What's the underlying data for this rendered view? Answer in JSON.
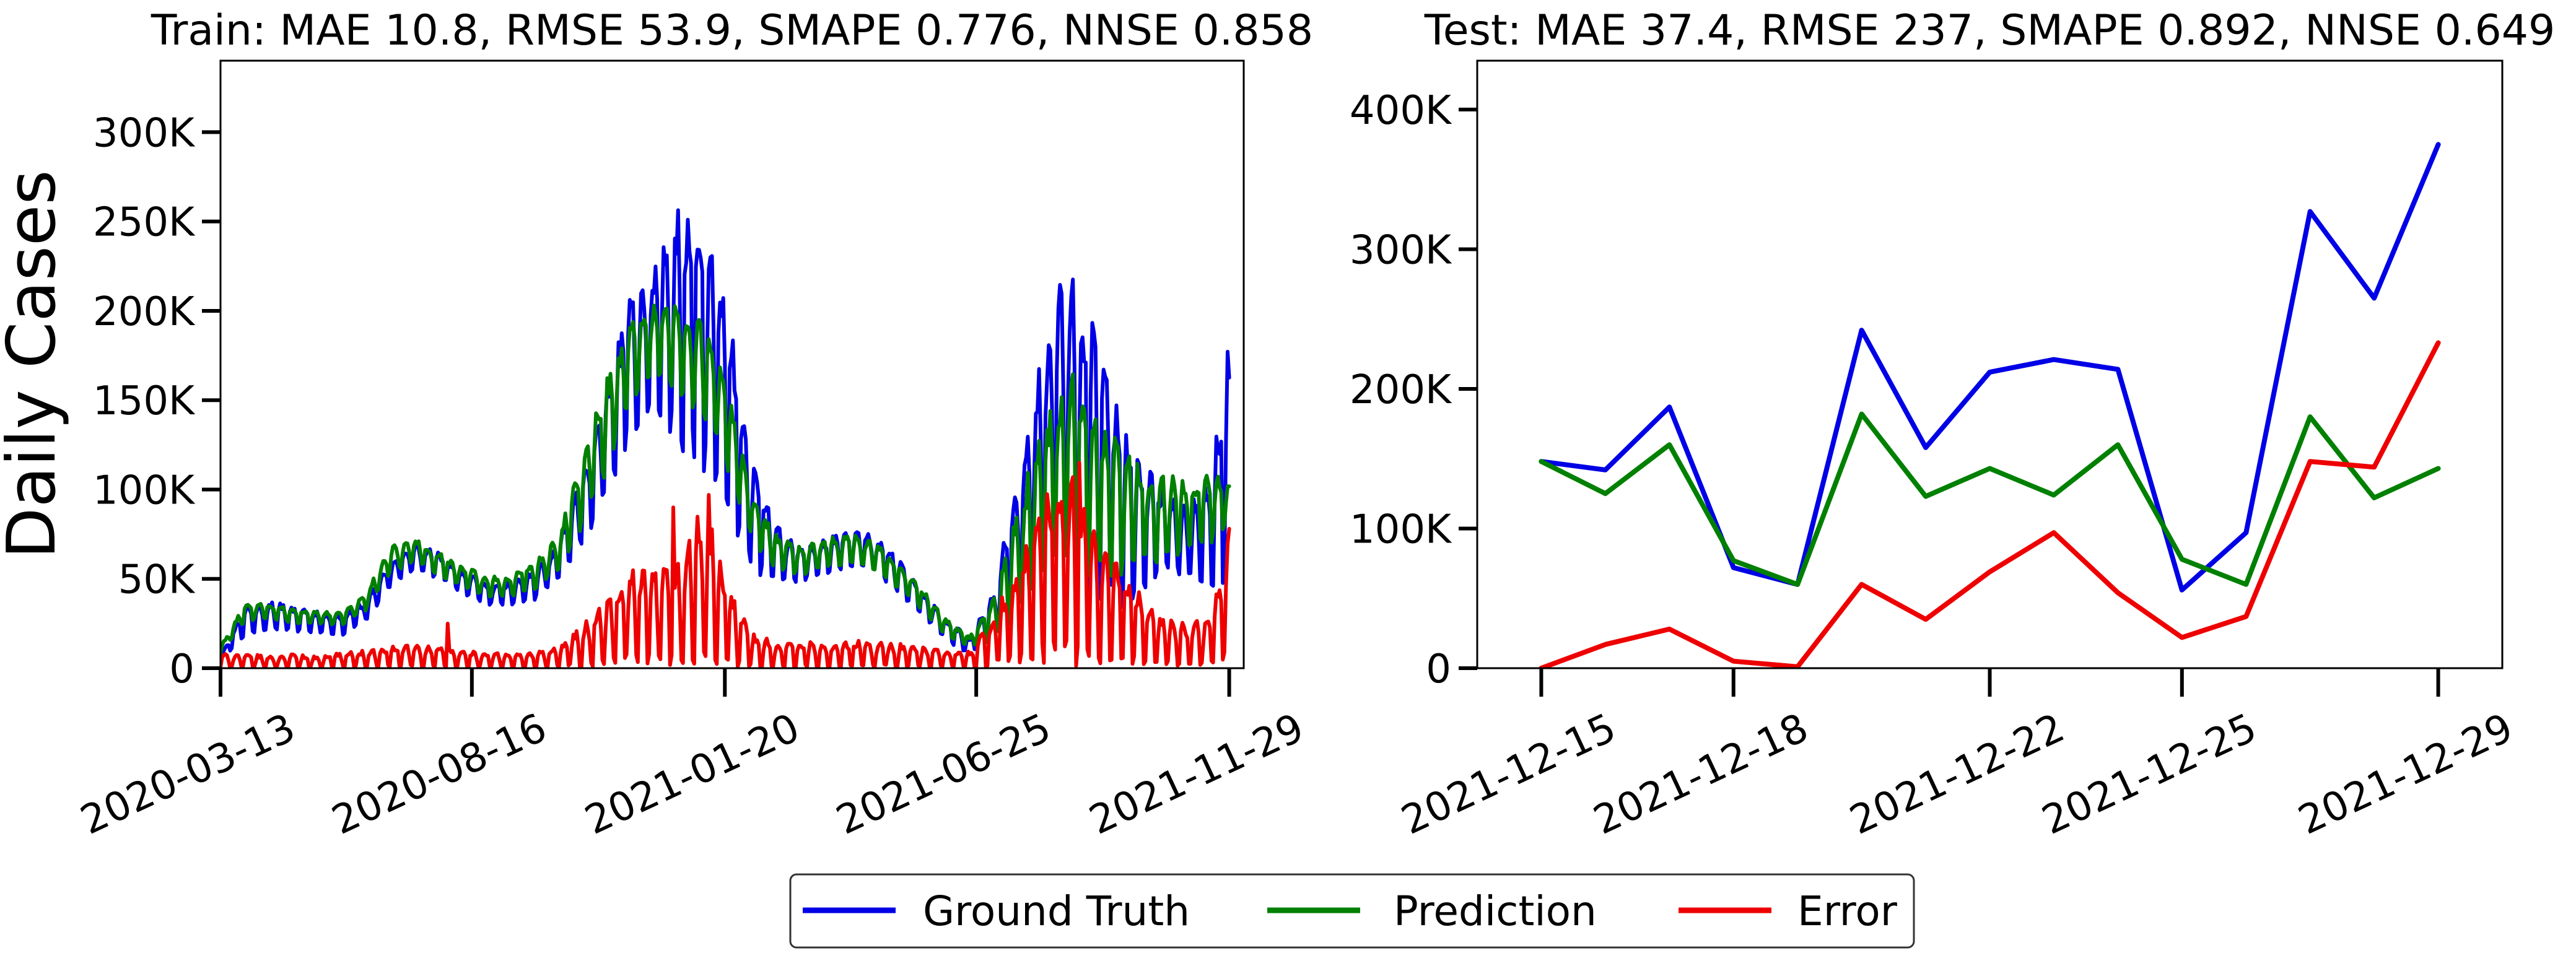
{
  "colors": {
    "ground_truth": "#0000e6",
    "prediction": "#008000",
    "error": "#ee0000",
    "axis": "#000000"
  },
  "legend": {
    "position": "bottom-center",
    "entries": [
      {
        "key": "ground_truth",
        "label": "Ground Truth"
      },
      {
        "key": "prediction",
        "label": "Prediction"
      },
      {
        "key": "error",
        "label": "Error"
      }
    ]
  },
  "chart_data": [
    {
      "type": "line",
      "title": "Train: MAE 10.8, RMSE 53.9, SMAPE 0.776, NNSE 0.858",
      "ylabel": "Daily Cases",
      "xlabel": "",
      "x_range": [
        "2020-03-13",
        "2021-12-08"
      ],
      "ylim": [
        0,
        340000
      ],
      "yticks": [
        0,
        50000,
        100000,
        150000,
        200000,
        250000,
        300000
      ],
      "ytick_labels": [
        "0",
        "50K",
        "100K",
        "150K",
        "200K",
        "250K",
        "300K"
      ],
      "xticks": [
        "2020-03-13",
        "2020-08-16",
        "2021-01-20",
        "2021-06-25",
        "2021-11-29"
      ],
      "grid": false,
      "series": [
        {
          "key": "ground_truth",
          "name": "Ground Truth",
          "envelope": {
            "dates": [
              "2020-03-13",
              "2020-03-28",
              "2020-04-12",
              "2020-04-27",
              "2020-05-12",
              "2020-05-27",
              "2020-06-11",
              "2020-06-26",
              "2020-07-11",
              "2020-07-26",
              "2020-08-10",
              "2020-08-25",
              "2020-09-09",
              "2020-09-24",
              "2020-10-09",
              "2020-10-24",
              "2020-11-08",
              "2020-11-23",
              "2020-12-08",
              "2020-12-23",
              "2021-01-07",
              "2021-01-22",
              "2021-02-06",
              "2021-02-21",
              "2021-03-08",
              "2021-03-23",
              "2021-04-07",
              "2021-04-22",
              "2021-05-07",
              "2021-05-22",
              "2021-06-06",
              "2021-06-21",
              "2021-07-06",
              "2021-07-21",
              "2021-08-05",
              "2021-08-20",
              "2021-09-04",
              "2021-09-19",
              "2021-10-04",
              "2021-10-19",
              "2021-11-03",
              "2021-11-18",
              "2021-11-29"
            ],
            "low": [
              4000,
              18000,
              22000,
              20000,
              20000,
              18000,
              26000,
              45000,
              55000,
              50000,
              42000,
              35000,
              35000,
              38000,
              50000,
              70000,
              95000,
              130000,
              140000,
              120000,
              110000,
              85000,
              55000,
              45000,
              48000,
              52000,
              55000,
              55000,
              42000,
              30000,
              15000,
              8000,
              15000,
              40000,
              60000,
              55000,
              40000,
              30000,
              40000,
              55000,
              50000,
              45000,
              48000
            ],
            "high": [
              7000,
              35000,
              38000,
              35000,
              32000,
              30000,
              38000,
              58000,
              70000,
              65000,
              55000,
              48000,
              48000,
              55000,
              70000,
              110000,
              160000,
              210000,
              230000,
              260000,
              250000,
              200000,
              120000,
              80000,
              68000,
              72000,
              78000,
              75000,
              62000,
              45000,
              28000,
              18000,
              45000,
              110000,
              180000,
              230000,
              200000,
              160000,
              120000,
              100000,
              90000,
              110000,
              185000
            ]
          }
        },
        {
          "key": "prediction",
          "name": "Prediction",
          "envelope": {
            "dates": [
              "2020-03-13",
              "2020-03-28",
              "2020-04-12",
              "2020-04-27",
              "2020-05-12",
              "2020-05-27",
              "2020-06-11",
              "2020-06-26",
              "2020-07-11",
              "2020-07-26",
              "2020-08-10",
              "2020-08-25",
              "2020-09-09",
              "2020-09-24",
              "2020-10-09",
              "2020-10-24",
              "2020-11-08",
              "2020-11-23",
              "2020-12-08",
              "2020-12-23",
              "2021-01-07",
              "2021-01-22",
              "2021-02-06",
              "2021-02-21",
              "2021-03-08",
              "2021-03-23",
              "2021-04-07",
              "2021-04-22",
              "2021-05-07",
              "2021-05-22",
              "2021-06-06",
              "2021-06-21",
              "2021-07-06",
              "2021-07-21",
              "2021-08-05",
              "2021-08-20",
              "2021-09-04",
              "2021-09-19",
              "2021-10-04",
              "2021-10-19",
              "2021-11-03",
              "2021-11-18",
              "2021-11-29"
            ],
            "low": [
              8000,
              26000,
              28000,
              25000,
              25000,
              24000,
              32000,
              52000,
              60000,
              52000,
              45000,
              40000,
              40000,
              44000,
              55000,
              80000,
              110000,
              150000,
              165000,
              150000,
              140000,
              110000,
              70000,
              55000,
              52000,
              55000,
              58000,
              55000,
              45000,
              33000,
              18000,
              12000,
              15000,
              30000,
              50000,
              60000,
              50000,
              50000,
              55000,
              60000,
              65000,
              70000,
              80000
            ],
            "high": [
              12000,
              36000,
              36000,
              33000,
              32000,
              31000,
              42000,
              68000,
              73000,
              65000,
              58000,
              52000,
              52000,
              60000,
              75000,
              120000,
              165000,
              195000,
              205000,
              205000,
              195000,
              160000,
              95000,
              75000,
              68000,
              72000,
              76000,
              72000,
              60000,
              45000,
              28000,
              18000,
              40000,
              90000,
              140000,
              170000,
              155000,
              130000,
              115000,
              110000,
              105000,
              110000,
              105000
            ]
          }
        },
        {
          "key": "error",
          "name": "Error",
          "envelope": {
            "dates": [
              "2020-03-13",
              "2020-03-28",
              "2020-04-12",
              "2020-04-27",
              "2020-05-12",
              "2020-05-27",
              "2020-06-11",
              "2020-06-26",
              "2020-07-11",
              "2020-07-26",
              "2020-08-10",
              "2020-08-25",
              "2020-09-09",
              "2020-09-24",
              "2020-10-09",
              "2020-10-24",
              "2020-11-08",
              "2020-11-23",
              "2020-12-08",
              "2020-12-23",
              "2021-01-07",
              "2021-01-22",
              "2021-02-06",
              "2021-02-21",
              "2021-03-08",
              "2021-03-23",
              "2021-04-07",
              "2021-04-22",
              "2021-05-07",
              "2021-05-22",
              "2021-06-06",
              "2021-06-21",
              "2021-07-06",
              "2021-07-21",
              "2021-08-05",
              "2021-08-20",
              "2021-09-04",
              "2021-09-19",
              "2021-10-04",
              "2021-10-19",
              "2021-11-03",
              "2021-11-18",
              "2021-11-29"
            ],
            "low": [
              0,
              0,
              0,
              0,
              0,
              0,
              0,
              0,
              0,
              0,
              0,
              0,
              0,
              0,
              0,
              0,
              0,
              0,
              0,
              0,
              0,
              0,
              0,
              0,
              0,
              0,
              0,
              0,
              0,
              0,
              0,
              0,
              0,
              0,
              0,
              0,
              0,
              0,
              0,
              0,
              0,
              0,
              0
            ],
            "high": [
              8000,
              8000,
              7000,
              8000,
              7000,
              9000,
              10000,
              12000,
              14000,
              12000,
              10000,
              9000,
              8000,
              9000,
              12000,
              25000,
              40000,
              55000,
              55000,
              60000,
              95000,
              45000,
              20000,
              15000,
              15000,
              14000,
              15000,
              16000,
              14000,
              12000,
              10000,
              10000,
              30000,
              60000,
              100000,
              115000,
              85000,
              60000,
              45000,
              30000,
              25000,
              30000,
              75000
            ]
          },
          "spikes": [
            {
              "date": "2020-08-01",
              "value": 25000
            },
            {
              "date": "2020-12-19",
              "value": 90000
            },
            {
              "date": "2021-01-10",
              "value": 97000
            },
            {
              "date": "2021-08-28",
              "value": 115000
            },
            {
              "date": "2021-11-29",
              "value": 78000
            }
          ]
        }
      ]
    },
    {
      "type": "line",
      "title": "Test: MAE 37.4, RMSE 237, SMAPE 0.892, NNSE 0.649",
      "ylabel": "",
      "xlabel": "",
      "x": [
        "2021-12-15",
        "2021-12-16",
        "2021-12-17",
        "2021-12-18",
        "2021-12-19",
        "2021-12-20",
        "2021-12-21",
        "2021-12-22",
        "2021-12-23",
        "2021-12-24",
        "2021-12-25",
        "2021-12-26",
        "2021-12-27",
        "2021-12-28",
        "2021-12-29"
      ],
      "x_range": [
        "2021-12-14",
        "2021-12-30"
      ],
      "ylim": [
        0,
        435000
      ],
      "yticks": [
        0,
        100000,
        200000,
        300000,
        400000
      ],
      "ytick_labels": [
        "0",
        "100K",
        "200K",
        "300K",
        "400K"
      ],
      "xticks": [
        "2021-12-15",
        "2021-12-18",
        "2021-12-22",
        "2021-12-25",
        "2021-12-29"
      ],
      "grid": false,
      "series": [
        {
          "key": "ground_truth",
          "name": "Ground Truth",
          "values": [
            148000,
            142000,
            187000,
            72000,
            60000,
            242000,
            158000,
            212000,
            221000,
            214000,
            56000,
            97000,
            327000,
            265000,
            375000
          ]
        },
        {
          "key": "prediction",
          "name": "Prediction",
          "values": [
            148000,
            125000,
            160000,
            77000,
            60000,
            182000,
            123000,
            143000,
            124000,
            160000,
            78000,
            60000,
            180000,
            122000,
            143000
          ]
        },
        {
          "key": "error",
          "name": "Error",
          "values": [
            0,
            17000,
            28000,
            5000,
            1000,
            60000,
            35000,
            69000,
            97000,
            54000,
            22000,
            37000,
            148000,
            144000,
            233000
          ]
        }
      ]
    }
  ]
}
